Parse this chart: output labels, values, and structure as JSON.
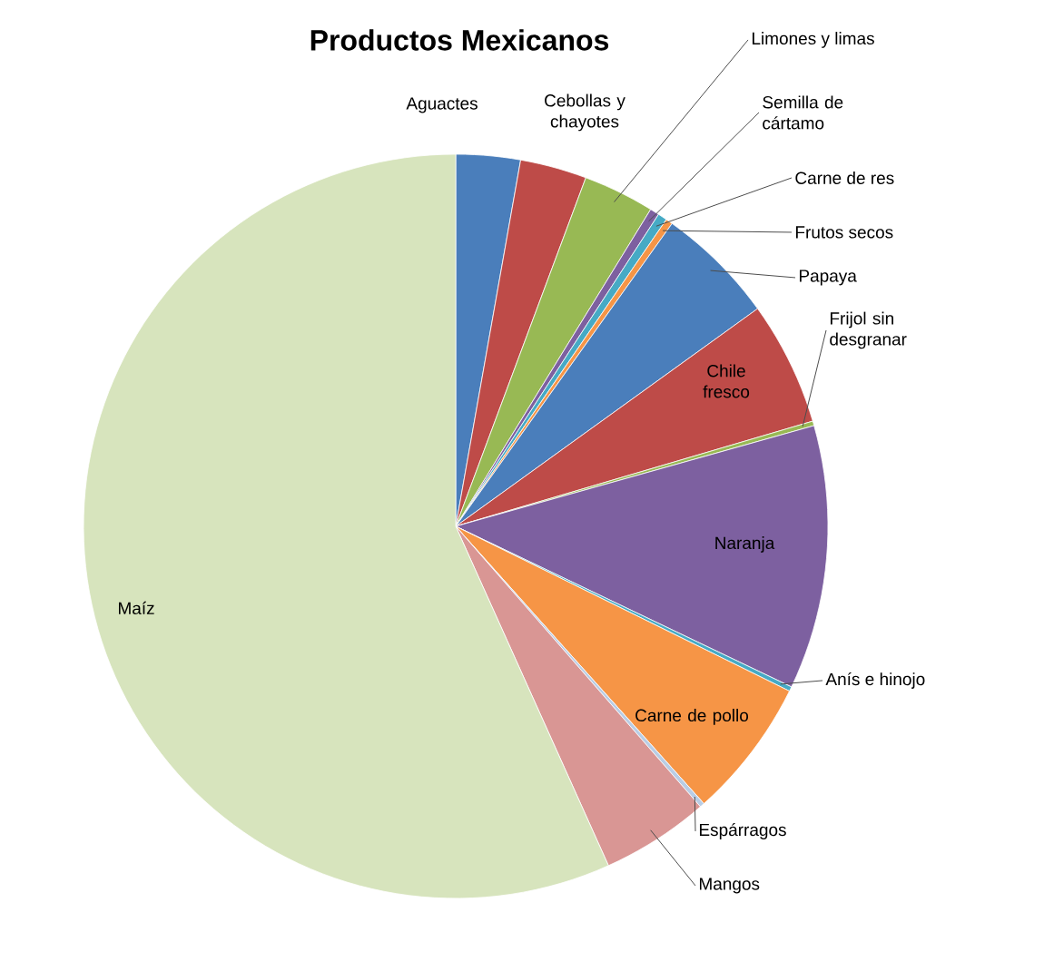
{
  "chart_data": {
    "type": "pie",
    "title": "Productos Mexicanos",
    "categories": [
      "Aguactes",
      "Cebollas y chayotes",
      "Limones y limas",
      "Semilla de cártamo",
      "Carne de res",
      "Frutos secos",
      "Papaya",
      "Chile fresco",
      "Frijol sin desgranar",
      "Naranja",
      "Anís e hinojo",
      "Carne de pollo",
      "Espárragos",
      "Mangos",
      "Maíz"
    ],
    "values": [
      2.8,
      2.9,
      3.1,
      0.4,
      0.4,
      0.3,
      5.2,
      5.4,
      0.2,
      11.5,
      0.2,
      6.1,
      0.2,
      4.7,
      56.9
    ],
    "colors": [
      "#4a7ebb",
      "#be4b48",
      "#98b954",
      "#7d60a0",
      "#46aac5",
      "#f69546",
      "#4a7ebb",
      "#be4b48",
      "#98b954",
      "#7d60a0",
      "#46aac5",
      "#f69546",
      "#b9cde5",
      "#d99694",
      "#d7e4bd"
    ]
  }
}
